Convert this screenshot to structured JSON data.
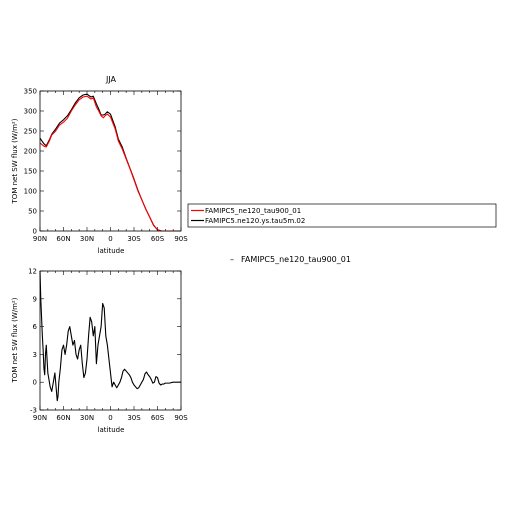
{
  "figure_title": "JJA",
  "diff_label": "FAMIPC5_ne120_tau900_01",
  "diff_label_prefix": "–",
  "legend": {
    "entries": [
      {
        "label": "FAMIPC5_ne120_tau900_01",
        "color": "#ff0000"
      },
      {
        "label": "FAMIPC5.ne120.ys.tau5m.02",
        "color": "#000000"
      }
    ]
  },
  "chart_data": [
    {
      "type": "line",
      "title": "JJA",
      "xlabel": "latitude",
      "ylabel": "TOM net SW flux (W/m²)",
      "xlim": [
        90,
        -90
      ],
      "ylim": [
        0,
        350
      ],
      "xticks": [
        {
          "v": 90,
          "label": "90N"
        },
        {
          "v": 60,
          "label": "60N"
        },
        {
          "v": 30,
          "label": "30N"
        },
        {
          "v": 0,
          "label": "0"
        },
        {
          "v": -30,
          "label": "30S"
        },
        {
          "v": -60,
          "label": "60S"
        },
        {
          "v": -90,
          "label": "90S"
        }
      ],
      "yticks": [
        0,
        50,
        100,
        150,
        200,
        250,
        300,
        350
      ],
      "grid": false,
      "series": [
        {
          "name": "FAMIPC5_ne120_tau900_01",
          "color": "#ff0000",
          "x": [
            90,
            85,
            82,
            78,
            75,
            70,
            65,
            60,
            55,
            50,
            45,
            40,
            35,
            30,
            25,
            22,
            18,
            15,
            12,
            9,
            7,
            4,
            0,
            -3,
            -6,
            -10,
            -15,
            -20,
            -25,
            -30,
            -35,
            -40,
            -45,
            -50,
            -55,
            -60,
            -65,
            -70,
            -75,
            -80,
            -85,
            -90
          ],
          "y": [
            220,
            212,
            210,
            225,
            240,
            250,
            265,
            272,
            282,
            300,
            315,
            328,
            335,
            337,
            330,
            333,
            310,
            300,
            288,
            283,
            288,
            292,
            285,
            270,
            255,
            225,
            205,
            180,
            155,
            128,
            100,
            78,
            55,
            35,
            15,
            3,
            0,
            0,
            0,
            0,
            0,
            0
          ]
        },
        {
          "name": "FAMIPC5.ne120.ys.tau5m.02",
          "color": "#000000",
          "x": [
            90,
            85,
            82,
            78,
            75,
            70,
            65,
            60,
            55,
            50,
            45,
            40,
            35,
            30,
            25,
            22,
            18,
            15,
            12,
            9,
            7,
            4,
            0,
            -3,
            -6,
            -10,
            -15,
            -20,
            -25,
            -30,
            -35,
            -40,
            -45,
            -50,
            -55,
            -60,
            -65,
            -70,
            -75,
            -80,
            -85,
            -90
          ],
          "y": [
            232,
            218,
            213,
            228,
            242,
            255,
            270,
            278,
            288,
            303,
            320,
            333,
            340,
            342,
            335,
            337,
            318,
            305,
            290,
            290,
            292,
            298,
            292,
            276,
            260,
            230,
            210,
            182,
            156,
            130,
            102,
            78,
            55,
            35,
            14,
            3,
            0,
            0,
            0,
            0,
            0,
            0
          ]
        }
      ]
    },
    {
      "type": "line",
      "title": "",
      "xlabel": "latitude",
      "ylabel": "TOM net SW flux (W/m²)",
      "xlim": [
        90,
        -90
      ],
      "ylim": [
        -3,
        12
      ],
      "xticks": [
        {
          "v": 90,
          "label": "90N"
        },
        {
          "v": 60,
          "label": "60N"
        },
        {
          "v": 30,
          "label": "30N"
        },
        {
          "v": 0,
          "label": "0"
        },
        {
          "v": -30,
          "label": "30S"
        },
        {
          "v": -60,
          "label": "60S"
        },
        {
          "v": -90,
          "label": "90S"
        }
      ],
      "yticks": [
        -3,
        0,
        3,
        6,
        9,
        12
      ],
      "grid": false,
      "series": [
        {
          "name": "FAMIPC5_ne120_tau900_01",
          "color": "#000000",
          "x": [
            90,
            89,
            87,
            86,
            85,
            84,
            83,
            82,
            81,
            80,
            79,
            77,
            75,
            73,
            71,
            70,
            69,
            68,
            67,
            66,
            64,
            62,
            60,
            58,
            56,
            54,
            52,
            50,
            48,
            46,
            44,
            42,
            40,
            38,
            36,
            34,
            32,
            30,
            28,
            26,
            24,
            22,
            20,
            18,
            16,
            14,
            12,
            10,
            8,
            6,
            4,
            2,
            0,
            -2,
            -4,
            -6,
            -8,
            -10,
            -12,
            -14,
            -16,
            -18,
            -20,
            -22,
            -24,
            -26,
            -28,
            -30,
            -32,
            -34,
            -36,
            -38,
            -40,
            -42,
            -44,
            -46,
            -48,
            -50,
            -52,
            -54,
            -56,
            -58,
            -60,
            -62,
            -64,
            -66,
            -68,
            -70,
            -75,
            -80,
            -85,
            -90
          ],
          "y": [
            12,
            9,
            5,
            3.5,
            1.5,
            0.8,
            3,
            4,
            2.5,
            1,
            0.5,
            -0.5,
            -1,
            0,
            1,
            0,
            -1,
            -2,
            -1.5,
            0,
            1.5,
            3.5,
            4,
            3,
            4,
            5.5,
            6,
            5,
            4,
            4.5,
            3,
            2.5,
            3.5,
            4,
            2,
            0.5,
            1,
            2.5,
            5,
            7,
            6.5,
            5,
            6,
            2,
            4,
            5,
            6,
            8.5,
            8,
            5,
            4,
            2.5,
            1,
            -0.5,
            0,
            -0.3,
            -0.6,
            -0.3,
            0,
            0.5,
            1.2,
            1.4,
            1.2,
            1.0,
            0.8,
            0.5,
            0,
            -0.3,
            -0.5,
            -0.7,
            -0.6,
            -0.3,
            0,
            0.3,
            0.9,
            1.1,
            0.8,
            0.6,
            0.3,
            -0.1,
            0,
            0.6,
            0.5,
            -0.1,
            -0.3,
            -0.2,
            -0.2,
            -0.1,
            -0.1,
            0,
            0,
            0
          ]
        }
      ]
    }
  ]
}
